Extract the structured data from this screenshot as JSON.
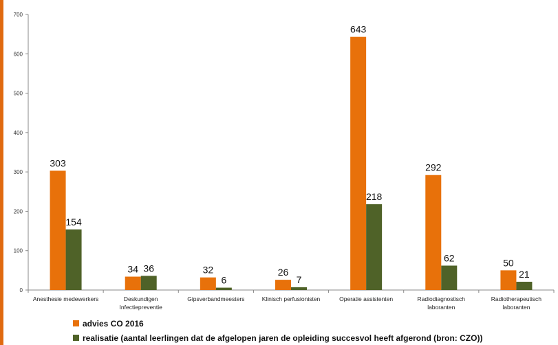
{
  "colors": {
    "strip": "#e06a10",
    "advies": "#e8710a",
    "realisatie": "#4f6228",
    "axis": "#888888",
    "grid": "#d9d9d9"
  },
  "chart_data": {
    "type": "bar",
    "categories": [
      [
        "Anesthesie medewerkers"
      ],
      [
        "Deskundigen",
        "Infectiepreventie"
      ],
      [
        "Gipsverbandmeesters"
      ],
      [
        "Klinisch perfusionisten"
      ],
      [
        "Operatie assistenten"
      ],
      [
        "Radiodiagnostisch",
        "laboranten"
      ],
      [
        "Radiotherapeutisch",
        "laboranten"
      ]
    ],
    "series": [
      {
        "name": "advies CO 2016",
        "values": [
          303,
          34,
          32,
          26,
          643,
          292,
          50
        ]
      },
      {
        "name": "realisatie (aantal leerlingen dat de afgelopen jaren de opleiding succesvol heeft afgerond (bron: CZO))",
        "values": [
          154,
          36,
          6,
          7,
          218,
          62,
          21
        ]
      }
    ],
    "ylim": [
      0,
      700
    ],
    "yticks": [
      0,
      100,
      200,
      300,
      400,
      500,
      600,
      700
    ],
    "grid": false,
    "legend_position": "bottom-left"
  }
}
